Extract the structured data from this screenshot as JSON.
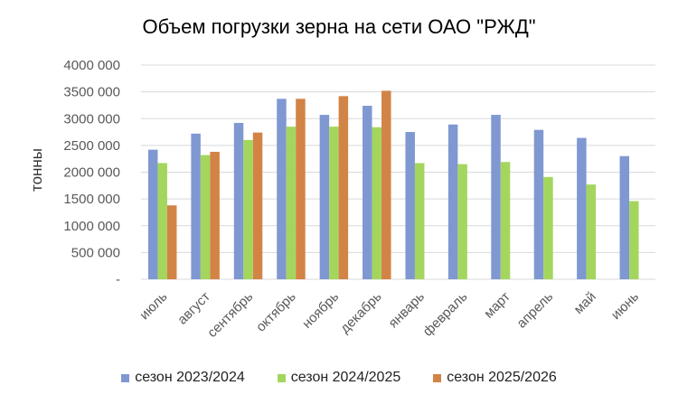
{
  "chart_data": {
    "type": "bar",
    "title": "Объем погрузки зерна на сети ОАО \"РЖД\"",
    "ylabel": "тонны",
    "xlabel": "",
    "ylim": [
      0,
      4000000
    ],
    "y_ticks": [
      0,
      500000,
      1000000,
      1500000,
      2000000,
      2500000,
      3000000,
      3500000,
      4000000
    ],
    "y_tick_labels": [
      "-",
      "500 000",
      "1000 000",
      "1500 000",
      "2000 000",
      "2500 000",
      "3000 000",
      "3500 000",
      "4000 000"
    ],
    "categories": [
      "июль",
      "август",
      "сентябрь",
      "октябрь",
      "ноябрь",
      "декабрь",
      "январь",
      "февраль",
      "март",
      "апрель",
      "май",
      "июнь"
    ],
    "grid": true,
    "legend_position": "bottom",
    "series": [
      {
        "name": "сезон 2023/2024",
        "color": "#7F98D2",
        "values": [
          2420000,
          2720000,
          2920000,
          3370000,
          3070000,
          3240000,
          2750000,
          2890000,
          3070000,
          2790000,
          2640000,
          2300000
        ]
      },
      {
        "name": "сезон 2024/2025",
        "color": "#A4D65E",
        "values": [
          2170000,
          2320000,
          2600000,
          2850000,
          2850000,
          2840000,
          2170000,
          2150000,
          2190000,
          1910000,
          1770000,
          1460000
        ]
      },
      {
        "name": "сезон 2025/2026",
        "color": "#D28446",
        "values": [
          1380000,
          2380000,
          2740000,
          3370000,
          3420000,
          3520000,
          null,
          null,
          null,
          null,
          null,
          null
        ]
      }
    ]
  }
}
